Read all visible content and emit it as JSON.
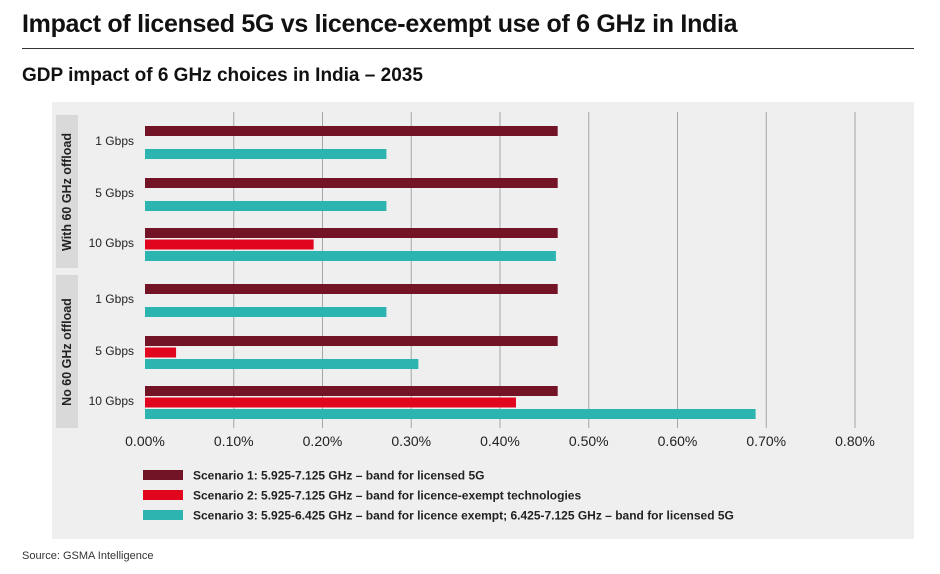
{
  "header": {
    "title": "Impact of licensed 5G vs licence-exempt use of 6 GHz in India",
    "subtitle": "GDP impact of 6 GHz choices in India – 2035"
  },
  "source": "Source: GSMA Intelligence",
  "colors": {
    "scenario1": "#731326",
    "scenario2": "#e2051e",
    "scenario3": "#2bb4b0",
    "panel": "#efefef",
    "grid": "#a6a6a6"
  },
  "chart_data": {
    "type": "bar",
    "orientation": "horizontal",
    "title": "GDP impact of 6 GHz choices in India – 2035",
    "xlabel": "",
    "ylabel": "",
    "xlim": [
      0,
      0.8
    ],
    "x_ticks": [
      0,
      0.1,
      0.2,
      0.3,
      0.4,
      0.5,
      0.6,
      0.7,
      0.8
    ],
    "x_tick_labels": [
      "0.00%",
      "0.10%",
      "0.20%",
      "0.30%",
      "0.40%",
      "0.50%",
      "0.60%",
      "0.70%",
      "0.80%"
    ],
    "grid": "vertical",
    "legend_position": "bottom",
    "groups": [
      {
        "name": "With 60 GHz offload",
        "categories": [
          "1 Gbps",
          "5 Gbps",
          "10 Gbps"
        ]
      },
      {
        "name": "No 60 GHz offload",
        "categories": [
          "1 Gbps",
          "5 Gbps",
          "10 Gbps"
        ]
      }
    ],
    "series": [
      {
        "name": "Scenario 1: 5.925-7.125 GHz – band for licensed 5G",
        "color": "#731326",
        "values": [
          [
            0.465,
            0.465,
            0.465
          ],
          [
            0.465,
            0.465,
            0.465
          ]
        ]
      },
      {
        "name": "Scenario 2: 5.925-7.125 GHz – band for licence-exempt technologies",
        "color": "#e2051e",
        "values": [
          [
            0.0,
            0.0,
            0.19
          ],
          [
            0.0,
            0.035,
            0.418
          ]
        ]
      },
      {
        "name": "Scenario 3: 5.925-6.425 GHz – band for licence exempt; 6.425-7.125 GHz – band for licensed 5G",
        "color": "#2bb4b0",
        "values": [
          [
            0.272,
            0.272,
            0.463
          ],
          [
            0.272,
            0.308,
            0.688
          ]
        ]
      }
    ]
  }
}
